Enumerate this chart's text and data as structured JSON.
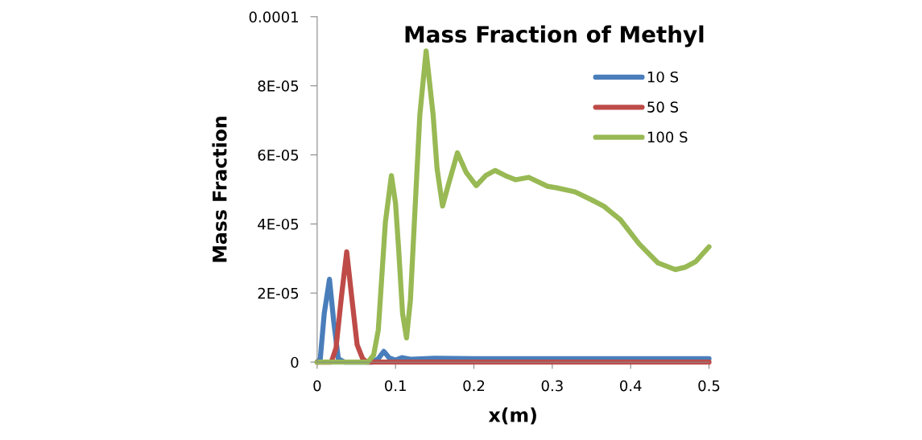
{
  "chart_data": {
    "type": "line",
    "title": "Mass Fraction of Methyl",
    "xlabel": "x(m)",
    "ylabel": "Mass Fraction",
    "xlim": [
      0,
      0.5
    ],
    "xticks": [
      0,
      0.1,
      0.2,
      0.3,
      0.4,
      0.5
    ],
    "ylim": [
      0,
      0.0001
    ],
    "yticks": [
      0,
      {
        "value": 2e-05,
        "label": "2E-05"
      },
      {
        "value": 4e-05,
        "label": "4E-05"
      },
      {
        "value": 6e-05,
        "label": "6E-05"
      },
      {
        "value": 8e-05,
        "label": "8E-05"
      },
      {
        "value": 0.0001,
        "label": "0.0001"
      }
    ],
    "grid": false,
    "legend": "top right",
    "marker": "none",
    "line_style": "solid",
    "series": [
      {
        "name": "10 S",
        "color": "#4a7ebb",
        "x": [
          0,
          0.004,
          0.009,
          0.0157,
          0.021,
          0.027,
          0.035,
          0.07,
          0.078,
          0.085,
          0.092,
          0.1,
          0.108,
          0.12,
          0.15,
          0.2,
          0.3,
          0.4,
          0.5
        ],
        "values": [
          0,
          1e-06,
          1.4e-05,
          2.4e-05,
          1.2e-05,
          1e-06,
          0,
          0,
          1e-06,
          3.1e-06,
          1.2e-06,
          6e-07,
          1.3e-06,
          8e-07,
          1.1e-06,
          1e-06,
          1e-06,
          1e-06,
          1e-06
        ]
      },
      {
        "name": "50 S",
        "color": "#be4b48",
        "x": [
          0,
          0.018,
          0.024,
          0.031,
          0.0377,
          0.044,
          0.051,
          0.058,
          0.063,
          0.5
        ],
        "values": [
          0,
          0,
          4e-06,
          1.9e-05,
          3.19e-05,
          1.9e-05,
          5e-06,
          1e-06,
          0,
          0
        ]
      },
      {
        "name": "100 S",
        "color": "#98b954",
        "x": [
          0,
          0.06,
          0.0645,
          0.072,
          0.078,
          0.087,
          0.0947,
          0.1,
          0.104,
          0.109,
          0.114,
          0.119,
          0.124,
          0.131,
          0.139,
          0.148,
          0.153,
          0.16,
          0.167,
          0.179,
          0.19,
          0.203,
          0.215,
          0.227,
          0.24,
          0.253,
          0.27,
          0.294,
          0.305,
          0.329,
          0.35,
          0.366,
          0.387,
          0.411,
          0.435,
          0.457,
          0.47,
          0.483,
          0.5
        ],
        "values": [
          0,
          0,
          0,
          2e-06,
          9.3e-06,
          4.04e-05,
          5.4e-05,
          4.6e-05,
          3.26e-05,
          1.4e-05,
          7e-06,
          1.8e-05,
          4.04e-05,
          7.15e-05,
          9.01e-05,
          7.15e-05,
          5.6e-05,
          4.52e-05,
          5.1e-05,
          6.06e-05,
          5.5e-05,
          5.11e-05,
          5.4e-05,
          5.55e-05,
          5.4e-05,
          5.28e-05,
          5.35e-05,
          5.09e-05,
          5.05e-05,
          4.93e-05,
          4.7e-05,
          4.51e-05,
          4.12e-05,
          3.42e-05,
          2.87e-05,
          2.68e-05,
          2.75e-05,
          2.91e-05,
          3.34e-05
        ]
      }
    ]
  }
}
